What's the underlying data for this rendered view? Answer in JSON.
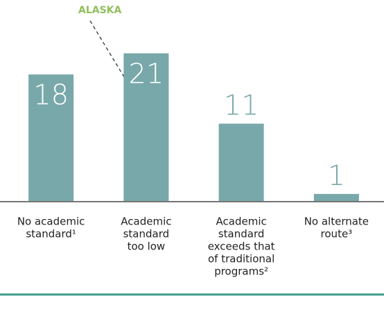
{
  "chart_data": {
    "type": "bar",
    "categories": [
      [
        "No academic",
        "standard¹"
      ],
      [
        "Academic",
        "standard",
        "too low"
      ],
      [
        "Academic",
        "standard",
        "exceeds that",
        "of traditional",
        "programs²"
      ],
      [
        "No alternate",
        "route³"
      ]
    ],
    "values": [
      18,
      21,
      11,
      1
    ],
    "color": "#78a8aa",
    "ylim": [
      0,
      21
    ],
    "annotation": "ALASKA"
  }
}
